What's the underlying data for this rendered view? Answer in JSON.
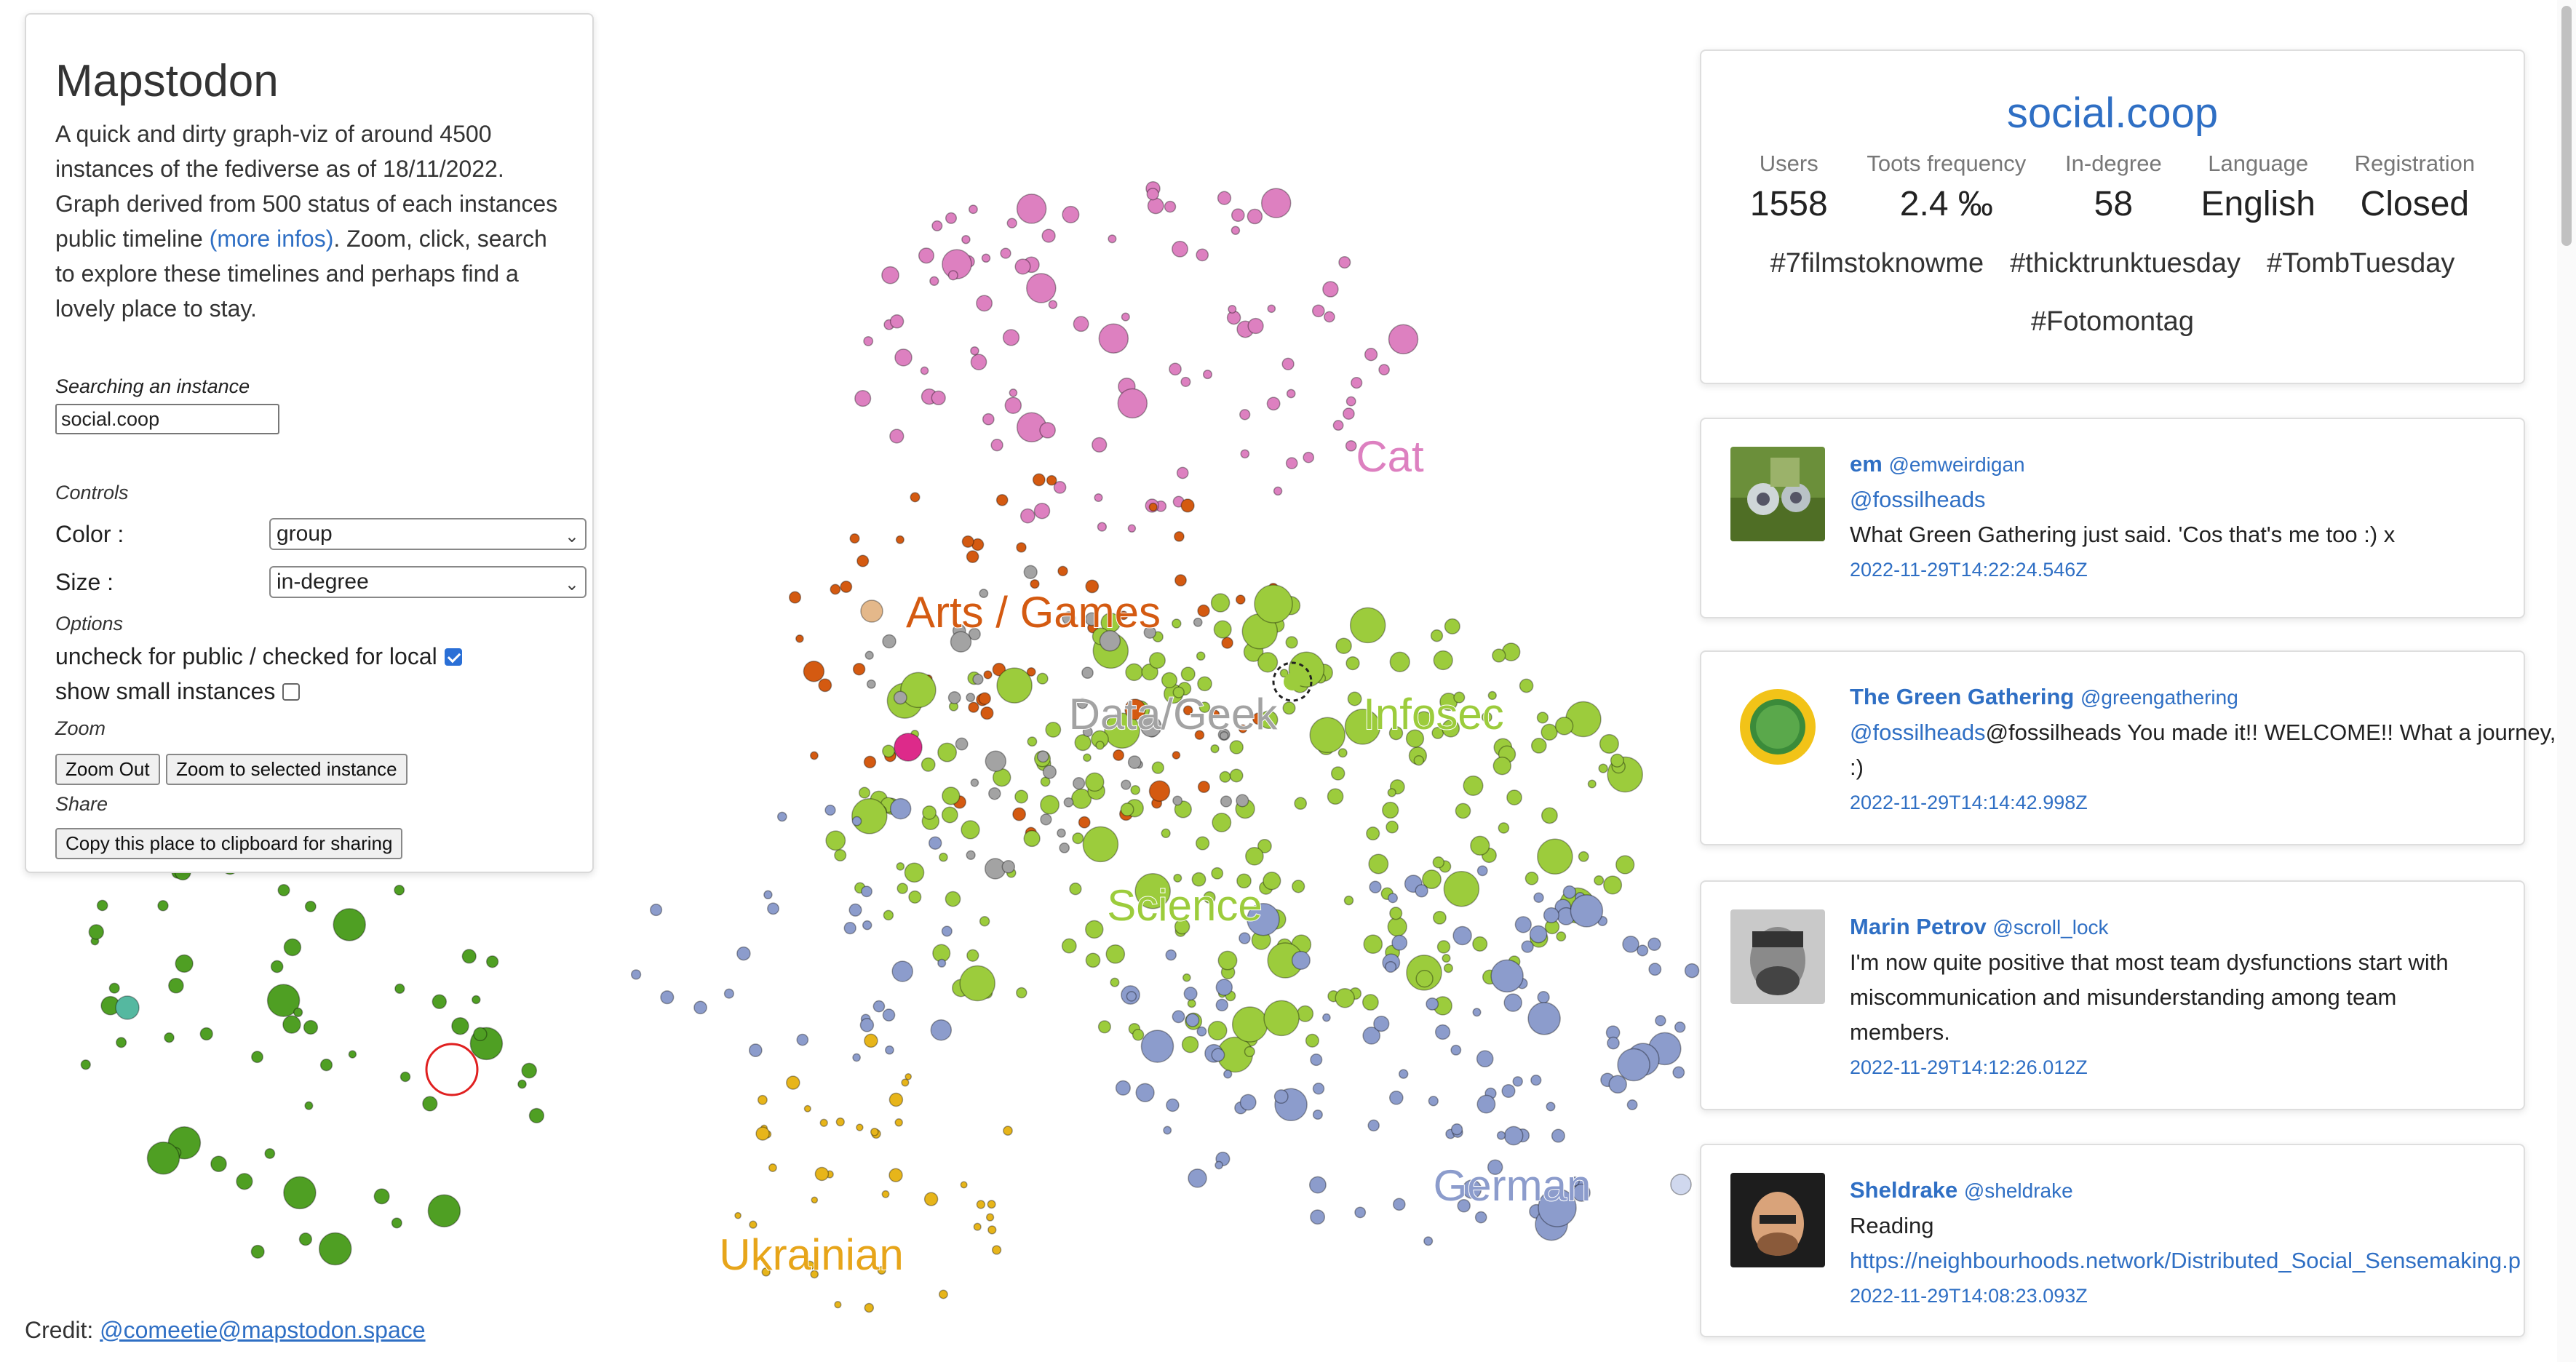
{
  "graph": {
    "labels": [
      {
        "text": "Arts / Games",
        "color": "#d45a11"
      },
      {
        "text": "Cat",
        "color": "#dd80c0"
      },
      {
        "text": "Data/Geek",
        "color": "#a3a3a3"
      },
      {
        "text": "Infosec",
        "color": "#9ccc3c"
      },
      {
        "text": "Science",
        "color": "#9ccc3c"
      },
      {
        "text": "German",
        "color": "#8c9ccc"
      },
      {
        "text": "Ukrainian",
        "color": "#e7a51a"
      }
    ],
    "colors": {
      "pink": "#dd80c0",
      "orange": "#d45a11",
      "lightgreen": "#9ccc3c",
      "darkgreen": "#4f9f23",
      "blue": "#8c9ccc",
      "gray": "#a3a3a3",
      "yellow": "#e7b51a",
      "teal": "#55b8a0",
      "magenta": "#dd2a8a",
      "tan": "#e4b88a"
    }
  },
  "panel": {
    "title": "Mapstodon",
    "description": "A quick and dirty graph-viz of around 4500 instances of the fediverse as of 18/11/2022. Graph derived from 500 status of each instances public timeline",
    "more_infos": "(more infos)",
    "description_tail": ". Zoom, click, search to explore these timelines and perhaps find a lovely place to stay.",
    "search_label": "Searching an instance",
    "search_value": "social.coop",
    "controls_label": "Controls",
    "color_label": "Color :",
    "color_value": "group",
    "size_label": "Size :",
    "size_value": "in-degree",
    "options_label": "Options",
    "option_local": "uncheck for public / checked for local",
    "option_small": "show small instances",
    "zoom_label": "Zoom",
    "zoom_out": "Zoom Out",
    "zoom_selected": "Zoom to selected instance",
    "share_label": "Share",
    "copy_btn": "Copy this place to clipboard for sharing"
  },
  "credit": {
    "prefix": "Credit: ",
    "handle": "@comeetie@mapstodon.space"
  },
  "instance": {
    "name": "social.coop",
    "stats": [
      {
        "key": "Users",
        "value": "1558"
      },
      {
        "key": "Toots frequency",
        "value": "2.4 ‰"
      },
      {
        "key": "In-degree",
        "value": "58"
      },
      {
        "key": "Language",
        "value": "English"
      },
      {
        "key": "Registration",
        "value": "Closed"
      }
    ],
    "tags": [
      "#7filmstoknowme",
      "#thicktrunktuesday",
      "#TombTuesday",
      "#Fotomontag"
    ]
  },
  "toots": [
    {
      "name": "em",
      "handle": "@emweirdigan",
      "line1": "@fossilheads",
      "line2": "What Green Gathering just said. 'Cos that's me too :) x",
      "line3": "",
      "date": "2022-11-29T14:22:24.546Z"
    },
    {
      "name": "The Green Gathering",
      "handle": "@greengathering",
      "line1": "@fossilheads You made it!! WELCOME!! What a journey, eh?",
      "line2": ":)",
      "line3": "",
      "date": "2022-11-29T14:14:42.998Z"
    },
    {
      "name": "Marin Petrov",
      "handle": "@scroll_lock",
      "line1": "I'm now quite positive that most team dysfunctions start with",
      "line2": "miscommunication and misunderstanding among team",
      "line3": "members.",
      "date": "2022-11-29T14:12:26.012Z"
    },
    {
      "name": "Sheldrake",
      "handle": "@sheldrake",
      "line1": "Reading",
      "line2": "https://neighbourhoods.network/Distributed_Social_Sensemaking.p",
      "line3": "",
      "date": "2022-11-29T14:08:23.093Z"
    }
  ]
}
